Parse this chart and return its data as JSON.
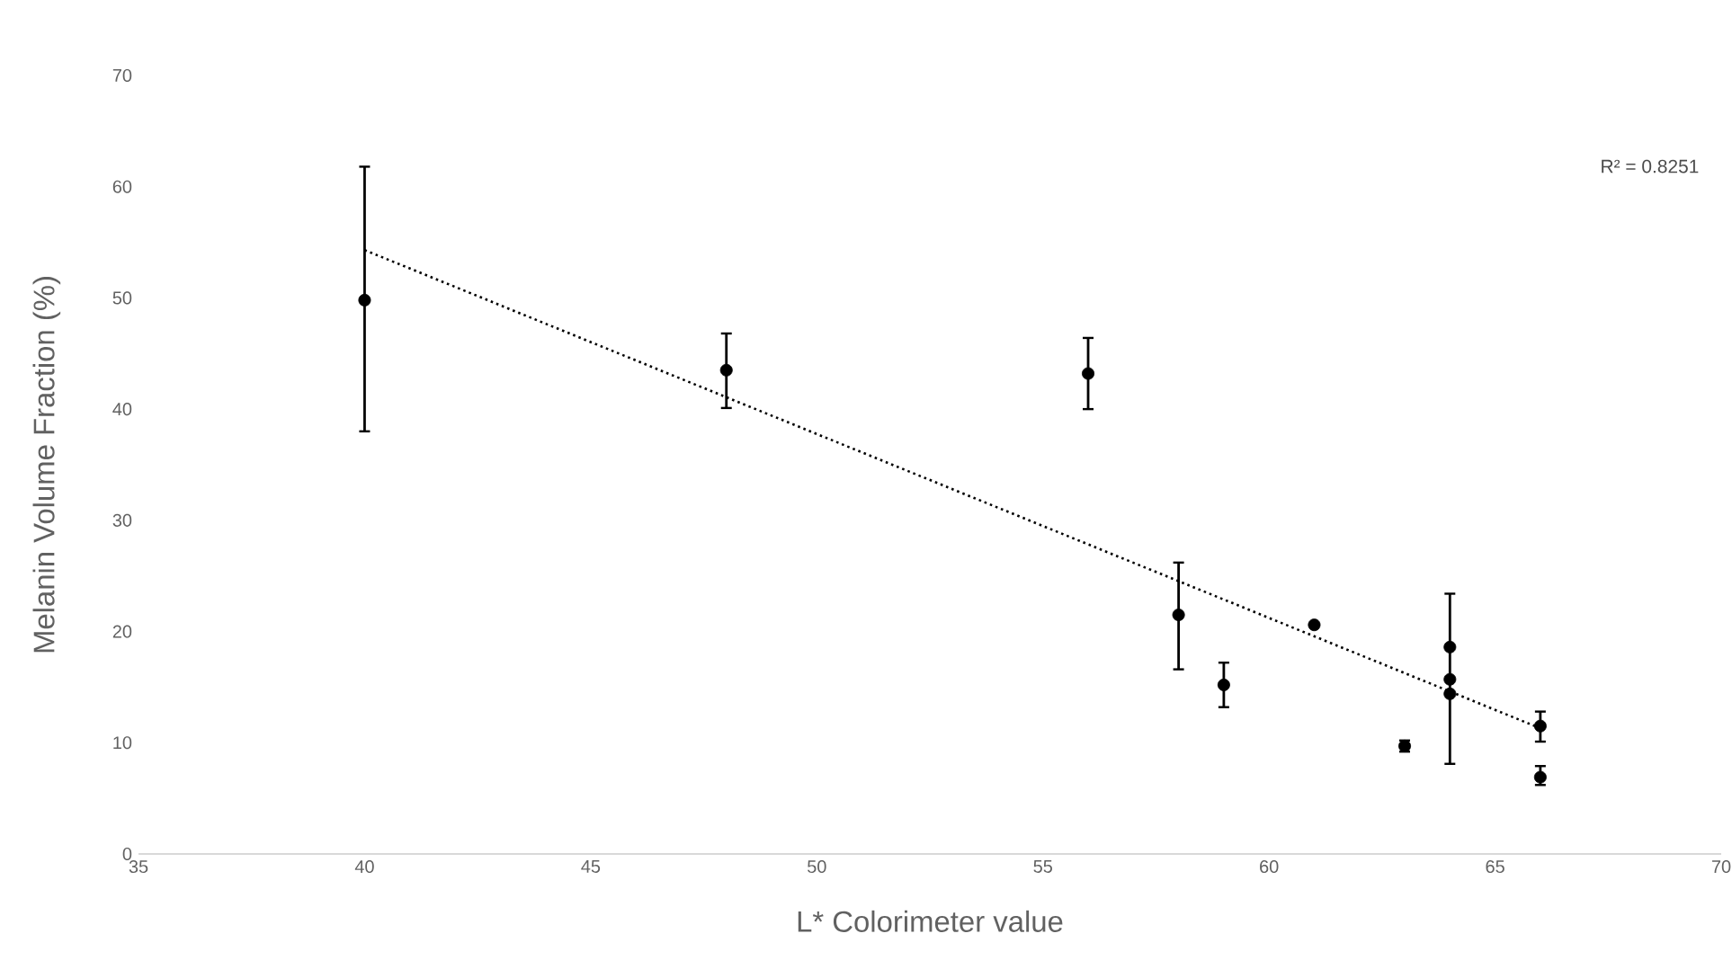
{
  "chart_data": {
    "type": "scatter",
    "xlabel": "L* Colorimeter value",
    "ylabel": "Melanin Volume Fraction (%)",
    "xlim": [
      35,
      70
    ],
    "xticks": [
      35,
      40,
      45,
      50,
      55,
      60,
      65,
      70
    ],
    "ylim": [
      0,
      70
    ],
    "yticks": [
      0,
      10,
      20,
      30,
      40,
      50,
      60,
      70
    ],
    "grid": false,
    "legend": false,
    "marker": "circle",
    "series": [
      {
        "color": "#000000",
        "x": [
          40,
          48,
          56,
          58,
          59,
          61,
          63,
          64,
          64,
          64,
          66,
          66
        ],
        "values": [
          49.8,
          43.5,
          43.2,
          21.5,
          15.2,
          20.6,
          9.7,
          18.6,
          15.7,
          14.4,
          11.5,
          6.9
        ],
        "errors": [
          [
            38.0,
            61.8
          ],
          [
            40.1,
            46.8
          ],
          [
            40.0,
            46.4
          ],
          [
            16.6,
            26.2
          ],
          [
            13.2,
            17.2
          ],
          null,
          [
            9.2,
            10.2
          ],
          null,
          null,
          [
            8.1,
            23.4
          ],
          [
            10.1,
            12.8
          ],
          [
            6.2,
            7.9
          ]
        ]
      },
      {
        "type": "line",
        "color": "#000000",
        "line_style": "dotted",
        "marker": "none",
        "x": [
          40,
          66
        ],
        "values": [
          54.3,
          11.3
        ]
      }
    ],
    "annotations": [
      "R² = 0.8251"
    ]
  }
}
